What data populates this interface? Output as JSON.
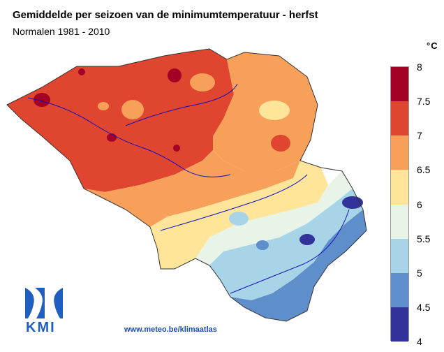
{
  "header": {
    "title": "Gemiddelde per seizoen van de minimumtemperatuur - herfst",
    "subtitle": "Normalen 1981 - 2010"
  },
  "legend": {
    "unit": "°C",
    "ticks": [
      "8",
      "7.5",
      "7",
      "6.5",
      "6",
      "5.5",
      "5",
      "4.5",
      "4"
    ],
    "colors": [
      "#a50026",
      "#e0452f",
      "#f6a05a",
      "#fee59a",
      "#e8f4e8",
      "#a7d4e6",
      "#5f8fcb",
      "#32329a"
    ]
  },
  "footer": {
    "url": "www.meteo.be/klimaatlas"
  },
  "logo": {
    "text": "KMI",
    "icon": "kmi-logo-icon"
  }
}
